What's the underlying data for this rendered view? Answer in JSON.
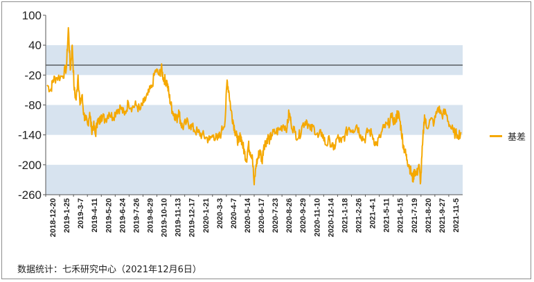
{
  "chart_data": {
    "type": "line",
    "y_ticks": [
      "100",
      "40",
      "-20",
      "-80",
      "-140",
      "-200",
      "-260"
    ],
    "ylim": [
      -260,
      100
    ],
    "shaded_bands": [
      [
        -20,
        40
      ],
      [
        -140,
        -80
      ],
      [
        -260,
        -200
      ]
    ],
    "reference_line": 0,
    "x_ticks": [
      "2018-12-20",
      "2019-1-25",
      "2019-3-7",
      "2019-4-11",
      "2019-5-20",
      "2019-6-24",
      "2019-7-26",
      "2019-8-29",
      "2019-10-10",
      "2019-11-13",
      "2019-12-17",
      "2020-1-21",
      "2020-3-3",
      "2020-4-7",
      "2020-5-14",
      "2020-6-17",
      "2020-7-23",
      "2020-8-26",
      "2020-9-29",
      "2020-11-10",
      "2020-12-14",
      "2021-1-18",
      "2021-2-26",
      "2021-4-1",
      "2021-5-11",
      "2021-6-15",
      "2021-7-19",
      "2021-8-20",
      "2021-9-27",
      "2021-11-5"
    ],
    "series": [
      {
        "name": "基差",
        "color": "#f5a800",
        "anchors": [
          [
            0,
            -40
          ],
          [
            2,
            -50
          ],
          [
            3,
            -30
          ],
          [
            5,
            -25
          ],
          [
            8,
            -22
          ],
          [
            10,
            -5
          ],
          [
            11,
            75
          ],
          [
            12,
            -10
          ],
          [
            13,
            40
          ],
          [
            14,
            -50
          ],
          [
            15,
            -70
          ],
          [
            16,
            -20
          ],
          [
            17,
            -80
          ],
          [
            18,
            -60
          ],
          [
            19,
            -100
          ],
          [
            20,
            -110
          ],
          [
            21,
            -120
          ],
          [
            22,
            -95
          ],
          [
            23,
            -130
          ],
          [
            24,
            -120
          ],
          [
            25,
            -140
          ],
          [
            26,
            -110
          ],
          [
            27,
            -115
          ],
          [
            28,
            -100
          ],
          [
            30,
            -110
          ],
          [
            32,
            -95
          ],
          [
            34,
            -105
          ],
          [
            36,
            -90
          ],
          [
            38,
            -85
          ],
          [
            40,
            -100
          ],
          [
            42,
            -75
          ],
          [
            44,
            -85
          ],
          [
            46,
            -80
          ],
          [
            48,
            -90
          ],
          [
            50,
            -75
          ],
          [
            52,
            -60
          ],
          [
            54,
            -45
          ],
          [
            56,
            -10
          ],
          [
            58,
            -20
          ],
          [
            59,
            -5
          ],
          [
            60,
            -25
          ],
          [
            61,
            -30
          ],
          [
            62,
            -35
          ],
          [
            63,
            -60
          ],
          [
            64,
            -80
          ],
          [
            65,
            -95
          ],
          [
            66,
            -100
          ],
          [
            67,
            -110
          ],
          [
            68,
            -90
          ],
          [
            69,
            -115
          ],
          [
            70,
            -125
          ],
          [
            72,
            -115
          ],
          [
            74,
            -120
          ],
          [
            76,
            -130
          ],
          [
            78,
            -135
          ],
          [
            80,
            -140
          ],
          [
            82,
            -145
          ],
          [
            84,
            -150
          ],
          [
            86,
            -140
          ],
          [
            88,
            -150
          ],
          [
            90,
            -135
          ],
          [
            92,
            -110
          ],
          [
            93,
            -30
          ],
          [
            94,
            -55
          ],
          [
            95,
            -90
          ],
          [
            96,
            -110
          ],
          [
            97,
            -130
          ],
          [
            98,
            -145
          ],
          [
            99,
            -155
          ],
          [
            100,
            -140
          ],
          [
            101,
            -160
          ],
          [
            102,
            -175
          ],
          [
            103,
            -190
          ],
          [
            104,
            -160
          ],
          [
            105,
            -175
          ],
          [
            106,
            -180
          ],
          [
            107,
            -240
          ],
          [
            108,
            -200
          ],
          [
            109,
            -185
          ],
          [
            110,
            -170
          ],
          [
            111,
            -195
          ],
          [
            112,
            -160
          ],
          [
            113,
            -155
          ],
          [
            114,
            -145
          ],
          [
            115,
            -150
          ],
          [
            116,
            -140
          ],
          [
            118,
            -135
          ],
          [
            120,
            -130
          ],
          [
            122,
            -120
          ],
          [
            124,
            -125
          ],
          [
            125,
            -95
          ],
          [
            126,
            -115
          ],
          [
            128,
            -135
          ],
          [
            130,
            -145
          ],
          [
            132,
            -120
          ],
          [
            134,
            -110
          ],
          [
            136,
            -130
          ],
          [
            138,
            -125
          ],
          [
            140,
            -145
          ],
          [
            142,
            -135
          ],
          [
            144,
            -160
          ],
          [
            146,
            -150
          ],
          [
            148,
            -170
          ],
          [
            150,
            -145
          ],
          [
            152,
            -155
          ],
          [
            154,
            -140
          ],
          [
            156,
            -125
          ],
          [
            158,
            -130
          ],
          [
            160,
            -120
          ],
          [
            162,
            -140
          ],
          [
            164,
            -150
          ],
          [
            166,
            -130
          ],
          [
            168,
            -140
          ],
          [
            170,
            -160
          ],
          [
            172,
            -145
          ],
          [
            174,
            -125
          ],
          [
            176,
            -120
          ],
          [
            178,
            -105
          ],
          [
            180,
            -115
          ],
          [
            181,
            -95
          ],
          [
            182,
            -105
          ],
          [
            183,
            -130
          ],
          [
            184,
            -160
          ],
          [
            185,
            -175
          ],
          [
            186,
            -190
          ],
          [
            187,
            -200
          ],
          [
            188,
            -215
          ],
          [
            189,
            -230
          ],
          [
            190,
            -210
          ],
          [
            191,
            -220
          ],
          [
            192,
            -200
          ],
          [
            193,
            -235
          ],
          [
            194,
            -160
          ],
          [
            195,
            -100
          ],
          [
            196,
            -125
          ],
          [
            198,
            -110
          ],
          [
            200,
            -115
          ],
          [
            202,
            -85
          ],
          [
            204,
            -100
          ],
          [
            206,
            -95
          ],
          [
            208,
            -120
          ],
          [
            210,
            -135
          ],
          [
            212,
            -140
          ],
          [
            214,
            -135
          ]
        ]
      }
    ]
  },
  "legend": {
    "label": "基差"
  },
  "footer": {
    "source": "数据统计：七禾研究中心（2021年12月6日）"
  }
}
